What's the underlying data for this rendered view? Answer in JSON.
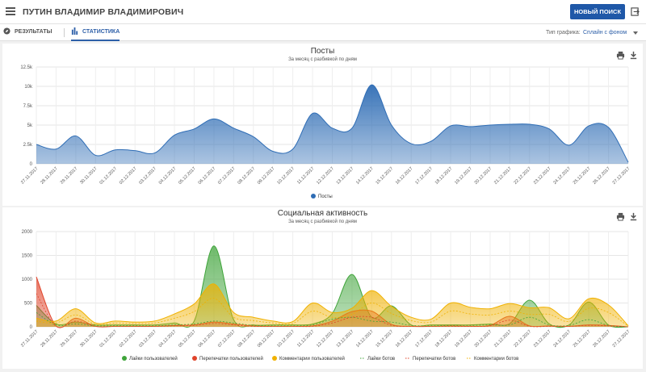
{
  "header": {
    "title": "ПУТИН ВЛАДИМИР ВЛАДИМИРОВИЧ",
    "new_search_label": "НОВЫЙ ПОИСК"
  },
  "tabs": {
    "results_label": "РЕЗУЛЬТАТЫ",
    "stats_label": "СТАТИСТИКА"
  },
  "chart_type": {
    "label": "Тип графика:",
    "value": "Сплайн с фоном"
  },
  "icons": {
    "menu": "menu-icon",
    "exit": "exit-icon",
    "results": "compass-icon",
    "stats": "bar-chart-icon",
    "print": "print-icon",
    "download": "download-icon"
  },
  "chart_data": [
    {
      "type": "area",
      "title": "Посты",
      "subtitle": "За месяц с разбивкой по дням",
      "x": [
        "27.11.2017",
        "28.11.2017",
        "29.11.2017",
        "30.11.2017",
        "01.12.2017",
        "02.12.2017",
        "03.12.2017",
        "04.12.2017",
        "05.12.2017",
        "06.12.2017",
        "07.12.2017",
        "08.12.2017",
        "09.12.2017",
        "10.12.2017",
        "11.12.2017",
        "12.12.2017",
        "13.12.2017",
        "14.12.2017",
        "15.12.2017",
        "16.12.2017",
        "17.12.2017",
        "18.12.2017",
        "19.12.2017",
        "20.12.2017",
        "21.12.2017",
        "22.12.2017",
        "23.12.2017",
        "24.12.2017",
        "25.12.2017",
        "26.12.2017",
        "27.12.2017"
      ],
      "yticks": [
        "0",
        "2.5k",
        "5k",
        "7.5k",
        "10k",
        "12.5k"
      ],
      "ylim": [
        0,
        12500
      ],
      "series": [
        {
          "name": "Посты",
          "color": "#2f6db5",
          "values": [
            2500,
            1900,
            3600,
            1100,
            1800,
            1700,
            1400,
            3700,
            4500,
            5800,
            4600,
            3500,
            1600,
            1900,
            6500,
            4600,
            4600,
            10200,
            5000,
            2600,
            2900,
            4900,
            4800,
            5000,
            5100,
            5100,
            4500,
            2400,
            4900,
            4700,
            200
          ]
        }
      ],
      "legend_position": "bottom",
      "grid": true
    },
    {
      "type": "area",
      "title": "Социальная активность",
      "subtitle": "За месяц с разбивкой по дням",
      "x": [
        "27.11.2017",
        "28.11.2017",
        "29.11.2017",
        "30.11.2017",
        "01.12.2017",
        "02.12.2017",
        "03.12.2017",
        "04.12.2017",
        "05.12.2017",
        "06.12.2017",
        "07.12.2017",
        "08.12.2017",
        "09.12.2017",
        "10.12.2017",
        "11.12.2017",
        "12.12.2017",
        "13.12.2017",
        "14.12.2017",
        "15.12.2017",
        "16.12.2017",
        "17.12.2017",
        "18.12.2017",
        "19.12.2017",
        "20.12.2017",
        "21.12.2017",
        "22.12.2017",
        "23.12.2017",
        "24.12.2017",
        "25.12.2017",
        "26.12.2017",
        "27.12.2017"
      ],
      "yticks": [
        "0",
        "500",
        "1000",
        "1500",
        "2000"
      ],
      "ylim": [
        0,
        2000
      ],
      "series": [
        {
          "name": "Лайки пользователей",
          "color": "#3fa43a",
          "kind": "area",
          "values": [
            450,
            60,
            100,
            40,
            40,
            40,
            40,
            80,
            120,
            1700,
            150,
            40,
            40,
            40,
            60,
            280,
            1100,
            200,
            440,
            40,
            40,
            40,
            40,
            60,
            70,
            560,
            60,
            40,
            520,
            40,
            0
          ]
        },
        {
          "name": "Перепечатки пользователей",
          "color": "#e0442b",
          "kind": "area",
          "values": [
            1050,
            20,
            180,
            10,
            10,
            10,
            10,
            30,
            40,
            100,
            60,
            20,
            10,
            10,
            20,
            120,
            320,
            330,
            50,
            10,
            10,
            20,
            10,
            30,
            220,
            20,
            20,
            10,
            40,
            30,
            0
          ]
        },
        {
          "name": "Комментарии пользователей",
          "color": "#f0b100",
          "kind": "area",
          "values": [
            180,
            120,
            380,
            80,
            120,
            100,
            120,
            270,
            480,
            900,
            300,
            200,
            120,
            110,
            500,
            300,
            390,
            760,
            430,
            200,
            160,
            500,
            410,
            380,
            490,
            400,
            400,
            170,
            590,
            460,
            20
          ]
        },
        {
          "name": "Лайки ботов",
          "color": "#3fa43a",
          "kind": "dashed",
          "values": [
            300,
            40,
            60,
            20,
            20,
            20,
            20,
            40,
            60,
            120,
            80,
            30,
            20,
            20,
            40,
            160,
            200,
            120,
            100,
            30,
            20,
            30,
            30,
            40,
            40,
            200,
            40,
            30,
            150,
            30,
            0
          ]
        },
        {
          "name": "Перепечатки ботов",
          "color": "#e0442b",
          "kind": "dashed",
          "values": [
            700,
            10,
            120,
            10,
            10,
            10,
            10,
            20,
            30,
            70,
            40,
            10,
            10,
            10,
            10,
            80,
            200,
            200,
            30,
            10,
            10,
            10,
            10,
            20,
            140,
            10,
            10,
            10,
            30,
            20,
            0
          ]
        },
        {
          "name": "Комментарии ботов",
          "color": "#f0b100",
          "kind": "dashed",
          "values": [
            120,
            80,
            250,
            50,
            80,
            70,
            80,
            180,
            320,
            600,
            200,
            130,
            80,
            70,
            330,
            200,
            260,
            500,
            280,
            130,
            100,
            330,
            270,
            250,
            330,
            260,
            260,
            110,
            390,
            300,
            10
          ]
        }
      ],
      "legend_position": "bottom",
      "grid": true
    }
  ]
}
